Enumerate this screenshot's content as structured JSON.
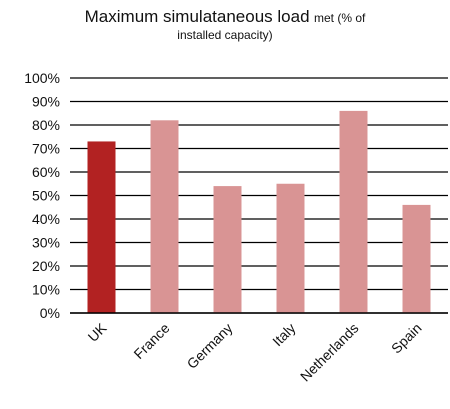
{
  "chart_data": {
    "type": "bar",
    "title_main": "Maximum simulataneous load",
    "title_tail": "met (% of",
    "title_line2": "installed capacity)",
    "categories": [
      "UK",
      "France",
      "Germany",
      "Italy",
      "Netherlands",
      "Spain"
    ],
    "values": [
      73,
      82,
      54,
      55,
      86,
      46
    ],
    "y_ticks": [
      "0%",
      "10%",
      "20%",
      "30%",
      "40%",
      "50%",
      "60%",
      "70%",
      "80%",
      "90%",
      "100%"
    ],
    "ylim": [
      0,
      100
    ],
    "grid": true,
    "colors": {
      "highlight": "#b22222",
      "bar": "#d99494",
      "grid": "#000000"
    },
    "highlight_index": 0
  }
}
